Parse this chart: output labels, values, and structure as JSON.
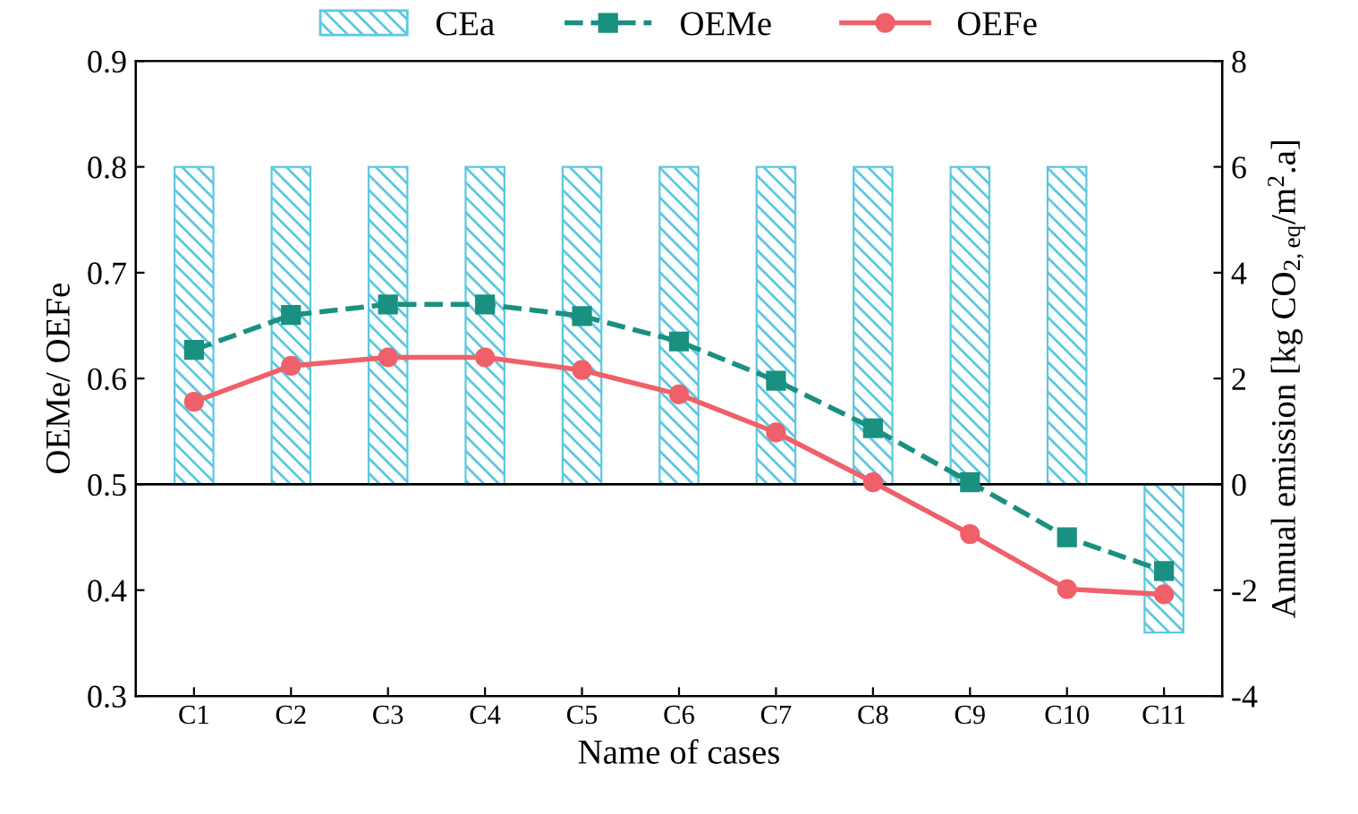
{
  "chart_data": {
    "type": "line",
    "categories": [
      "C1",
      "C2",
      "C3",
      "C4",
      "C5",
      "C6",
      "C7",
      "C8",
      "C9",
      "C10",
      "C11"
    ],
    "xlabel": "Name of cases",
    "ylabel": "OEMe/ OEFe",
    "y2label": "Annual emission [kg CO$_{2,eq}$/m$^{2}$.a]",
    "ylim": [
      0.3,
      0.9
    ],
    "yticks": [
      0.3,
      0.4,
      0.5,
      0.6,
      0.7,
      0.8,
      0.9
    ],
    "y2lim": [
      -4,
      8
    ],
    "y2ticks": [
      -4,
      -2,
      0,
      2,
      4,
      6,
      8
    ],
    "series": [
      {
        "name": "CEa",
        "type": "bar",
        "axis": "y2",
        "color": "#5bc8e0",
        "values": [
          6.0,
          6.0,
          6.0,
          6.0,
          6.0,
          6.0,
          6.0,
          6.0,
          6.0,
          6.0,
          -2.8
        ]
      },
      {
        "name": "OEMe",
        "color": "#1a9080",
        "marker": "square",
        "line_style": "dashed",
        "values": [
          0.627,
          0.66,
          0.67,
          0.67,
          0.659,
          0.635,
          0.598,
          0.553,
          0.502,
          0.45,
          0.418
        ]
      },
      {
        "name": "OEFe",
        "color": "#f0606a",
        "marker": "circle",
        "line_style": "solid",
        "values": [
          0.578,
          0.612,
          0.62,
          0.62,
          0.608,
          0.585,
          0.549,
          0.502,
          0.453,
          0.401,
          0.396
        ]
      }
    ],
    "ref_lines": [
      {
        "axis": "y2",
        "value": 0,
        "color": "#000000"
      }
    ],
    "legend": "top",
    "grid": false
  }
}
